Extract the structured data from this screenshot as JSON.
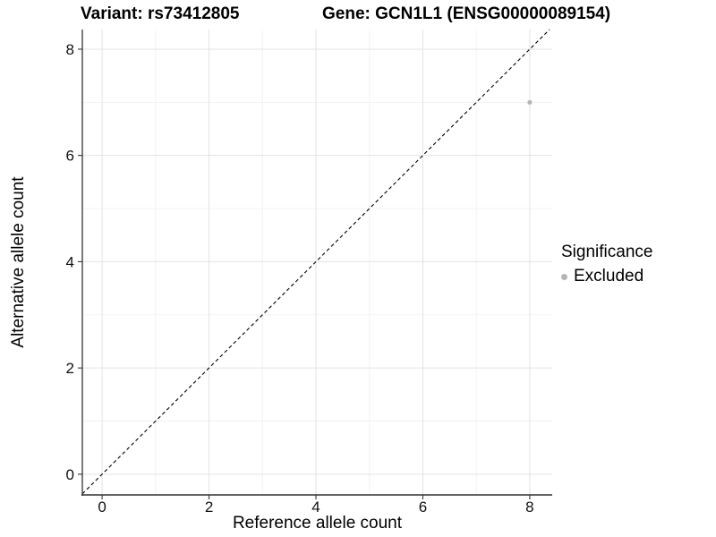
{
  "titles": {
    "variant": "Variant: rs73412805",
    "gene": "Gene: GCN1L1 (ENSG00000089154)"
  },
  "chart_data": {
    "type": "scatter",
    "title_left": "Variant: rs73412805",
    "title_right": "Gene: GCN1L1 (ENSG00000089154)",
    "xlabel": "Reference allele count",
    "ylabel": "Alternative allele count",
    "xlim": [
      -0.37,
      8.42
    ],
    "ylim": [
      -0.39,
      8.37
    ],
    "x_ticks": [
      0,
      2,
      4,
      6,
      8
    ],
    "y_ticks": [
      0,
      2,
      4,
      6,
      8
    ],
    "x_minor_ticks": [
      1,
      3,
      5,
      7
    ],
    "y_minor_ticks": [
      1,
      3,
      5,
      7
    ],
    "grid": "on",
    "series": [
      {
        "name": "Excluded",
        "points": [
          {
            "x": 8,
            "y": 7
          }
        ],
        "color": "#b5b5b5",
        "point_radius": 2.6
      }
    ],
    "reference_line": {
      "kind": "identity",
      "equation": "y = x",
      "style": "dashed",
      "color": "#000000"
    },
    "legend": {
      "title": "Significance",
      "position": "right",
      "entries": [
        {
          "label": "Excluded",
          "color": "#b5b5b5"
        }
      ]
    }
  },
  "colors": {
    "background": "#ffffff",
    "grid_major": "#e3e3e3",
    "grid_minor": "#f1f1f1",
    "axis_line": "#333333",
    "tick_mark": "#333333",
    "tick_label": "#111111",
    "point": "#b5b5b5",
    "dashed_line": "#000000"
  }
}
